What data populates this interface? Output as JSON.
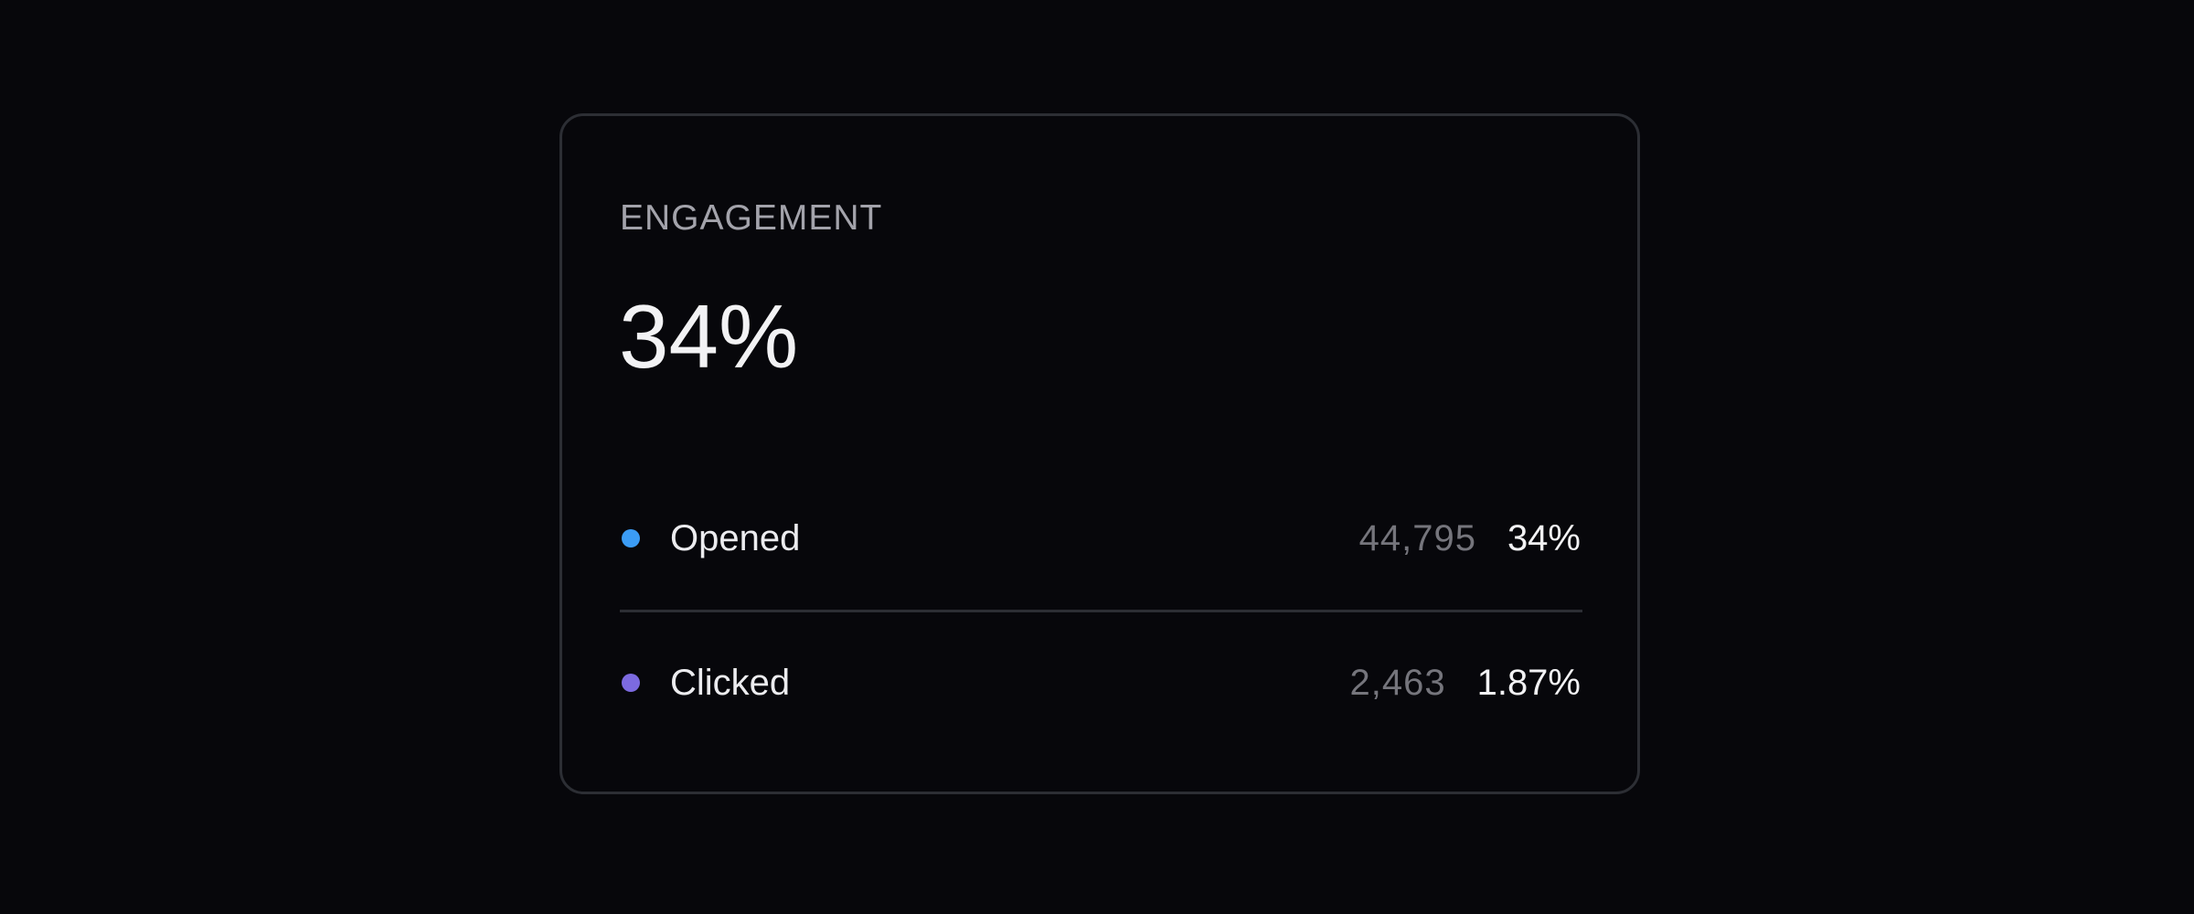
{
  "card": {
    "title": "ENGAGEMENT",
    "value": "34%",
    "rows": [
      {
        "label": "Opened",
        "count": "44,795",
        "percent": "34%",
        "color": "#3b9cf5"
      },
      {
        "label": "Clicked",
        "count": "2,463",
        "percent": "1.87%",
        "color": "#7c6ae0"
      }
    ]
  }
}
